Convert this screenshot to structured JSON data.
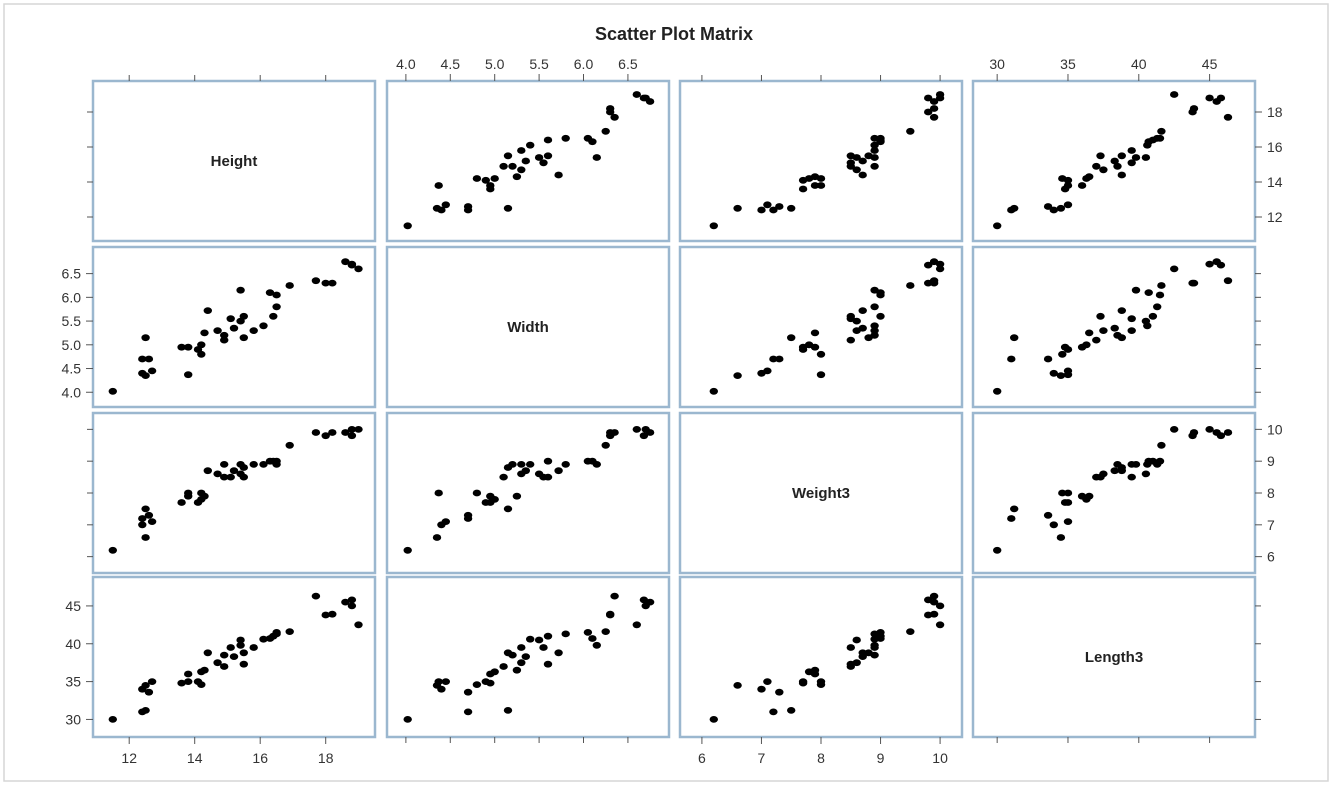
{
  "colors": {
    "frame": "#9bb7cf",
    "point": "#000000",
    "background": "#ffffff",
    "outer_border": "#d6d6d6"
  },
  "chart_data": {
    "type": "scatter",
    "title": "Scatter Plot Matrix",
    "variables": [
      {
        "name": "Height",
        "range": [
          11.2,
          19.2
        ],
        "ticks": [
          12,
          14,
          16,
          18
        ],
        "tick_labels": [
          "12",
          "14",
          "16",
          "18"
        ]
      },
      {
        "name": "Width",
        "range": [
          3.9,
          6.85
        ],
        "ticks": [
          4.0,
          4.5,
          5.0,
          5.5,
          6.0,
          6.5
        ],
        "tick_labels": [
          "4.0",
          "4.5",
          "5.0",
          "5.5",
          "6.0",
          "6.5"
        ]
      },
      {
        "name": "Weight3",
        "range": [
          5.8,
          10.2
        ],
        "ticks": [
          6,
          7,
          8,
          9,
          10
        ],
        "tick_labels": [
          "6",
          "7",
          "8",
          "9",
          "10"
        ]
      },
      {
        "name": "Length3",
        "range": [
          29.0,
          47.5
        ],
        "ticks": [
          30,
          35,
          40,
          45
        ],
        "tick_labels": [
          "30",
          "35",
          "40",
          "45"
        ]
      }
    ],
    "axis_label_positions": {
      "top": [
        1,
        3
      ],
      "bottom": [
        0,
        2
      ],
      "left": [
        1,
        3
      ],
      "right": [
        0,
        2
      ]
    },
    "grid": false,
    "observations": [
      {
        "Height": 11.5,
        "Width": 4.02,
        "Weight3": 6.2,
        "Length3": 30.0
      },
      {
        "Height": 12.4,
        "Width": 4.7,
        "Weight3": 7.2,
        "Length3": 31.0
      },
      {
        "Height": 12.5,
        "Width": 5.15,
        "Weight3": 7.5,
        "Length3": 31.2
      },
      {
        "Height": 12.4,
        "Width": 4.4,
        "Weight3": 7.0,
        "Length3": 34.0
      },
      {
        "Height": 12.6,
        "Width": 4.7,
        "Weight3": 7.3,
        "Length3": 33.6
      },
      {
        "Height": 12.5,
        "Width": 4.35,
        "Weight3": 6.6,
        "Length3": 34.5
      },
      {
        "Height": 12.7,
        "Width": 4.45,
        "Weight3": 7.1,
        "Length3": 35.0
      },
      {
        "Height": 13.6,
        "Width": 4.95,
        "Weight3": 7.7,
        "Length3": 34.8
      },
      {
        "Height": 13.8,
        "Width": 4.37,
        "Weight3": 8.0,
        "Length3": 35.0
      },
      {
        "Height": 13.8,
        "Width": 4.95,
        "Weight3": 7.9,
        "Length3": 36.0
      },
      {
        "Height": 14.1,
        "Width": 4.9,
        "Weight3": 7.7,
        "Length3": 35.0
      },
      {
        "Height": 14.2,
        "Width": 5.0,
        "Weight3": 7.8,
        "Length3": 36.3
      },
      {
        "Height": 14.3,
        "Width": 5.25,
        "Weight3": 7.9,
        "Length3": 36.5
      },
      {
        "Height": 14.2,
        "Width": 4.8,
        "Weight3": 8.0,
        "Length3": 34.6
      },
      {
        "Height": 14.4,
        "Width": 5.72,
        "Weight3": 8.7,
        "Length3": 38.8
      },
      {
        "Height": 14.7,
        "Width": 5.3,
        "Weight3": 8.6,
        "Length3": 37.5
      },
      {
        "Height": 14.9,
        "Width": 5.2,
        "Weight3": 8.9,
        "Length3": 38.5
      },
      {
        "Height": 14.9,
        "Width": 5.1,
        "Weight3": 8.5,
        "Length3": 37.0
      },
      {
        "Height": 15.1,
        "Width": 5.55,
        "Weight3": 8.5,
        "Length3": 39.5
      },
      {
        "Height": 15.2,
        "Width": 5.35,
        "Weight3": 8.7,
        "Length3": 38.3
      },
      {
        "Height": 15.4,
        "Width": 6.15,
        "Weight3": 8.9,
        "Length3": 39.8
      },
      {
        "Height": 15.4,
        "Width": 5.5,
        "Weight3": 8.6,
        "Length3": 40.5
      },
      {
        "Height": 15.5,
        "Width": 5.6,
        "Weight3": 8.5,
        "Length3": 37.3
      },
      {
        "Height": 15.5,
        "Width": 5.15,
        "Weight3": 8.8,
        "Length3": 38.8
      },
      {
        "Height": 15.8,
        "Width": 5.3,
        "Weight3": 8.9,
        "Length3": 39.5
      },
      {
        "Height": 16.1,
        "Width": 5.4,
        "Weight3": 8.9,
        "Length3": 40.6
      },
      {
        "Height": 16.3,
        "Width": 6.1,
        "Weight3": 9.0,
        "Length3": 40.7
      },
      {
        "Height": 16.4,
        "Width": 5.6,
        "Weight3": 9.0,
        "Length3": 41.0
      },
      {
        "Height": 16.5,
        "Width": 5.8,
        "Weight3": 8.9,
        "Length3": 41.3
      },
      {
        "Height": 16.5,
        "Width": 6.05,
        "Weight3": 9.0,
        "Length3": 41.5
      },
      {
        "Height": 16.9,
        "Width": 6.25,
        "Weight3": 9.5,
        "Length3": 41.6
      },
      {
        "Height": 17.7,
        "Width": 6.35,
        "Weight3": 9.9,
        "Length3": 46.3
      },
      {
        "Height": 18.0,
        "Width": 6.3,
        "Weight3": 9.8,
        "Length3": 43.8
      },
      {
        "Height": 18.2,
        "Width": 6.3,
        "Weight3": 9.9,
        "Length3": 43.9
      },
      {
        "Height": 18.6,
        "Width": 6.75,
        "Weight3": 9.9,
        "Length3": 45.5
      },
      {
        "Height": 18.8,
        "Width": 6.7,
        "Weight3": 10.0,
        "Length3": 45.0
      },
      {
        "Height": 18.8,
        "Width": 6.68,
        "Weight3": 9.8,
        "Length3": 45.8
      },
      {
        "Height": 19.0,
        "Width": 6.6,
        "Weight3": 10.0,
        "Length3": 42.5
      }
    ]
  }
}
